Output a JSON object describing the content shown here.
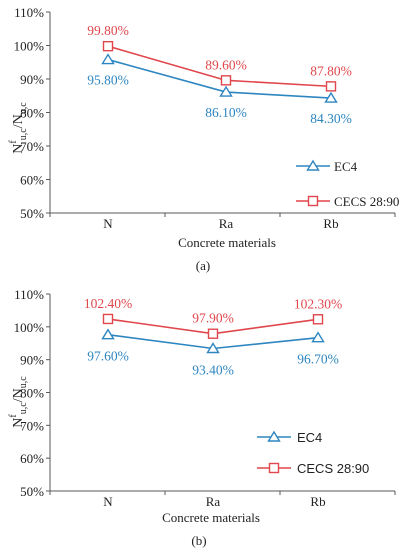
{
  "colors": {
    "ec4": "#2e86c1",
    "cecs": "#e0474c",
    "axis": "#595959",
    "text": "#222222"
  },
  "icons": {
    "ec4_marker": "triangle",
    "cecs_marker": "square"
  },
  "chart_data": [
    {
      "type": "line",
      "panel_label": "(a)",
      "categories": [
        "N",
        "Ra",
        "Rb"
      ],
      "series": [
        {
          "name": "EC4",
          "values": [
            95.8,
            86.1,
            84.3
          ],
          "labels": [
            "95.80%",
            "86.10%",
            "84.30%"
          ]
        },
        {
          "name": "CECS 28:90",
          "values": [
            99.8,
            89.6,
            87.8
          ],
          "labels": [
            "99.80%",
            "89.60%",
            "87.80%"
          ]
        }
      ],
      "xlabel": "Concrete materials",
      "ylabel_main": "N",
      "ylabel_sup": "f",
      "ylabel_sub": "u,c",
      "ylabel_tail": "/N",
      "ylabel_sub2": "u,c",
      "ylim": [
        50,
        110
      ],
      "yticks": [
        "50%",
        "60%",
        "70%",
        "80%",
        "90%",
        "100%",
        "110%"
      ],
      "grid": false,
      "legend": "lower-right"
    },
    {
      "type": "line",
      "panel_label": "(b)",
      "categories": [
        "N",
        "Ra",
        "Rb"
      ],
      "series": [
        {
          "name": "EC4",
          "values": [
            97.6,
            93.4,
            96.7
          ],
          "labels": [
            "97.60%",
            "93.40%",
            "96.70%"
          ]
        },
        {
          "name": "CECS 28:90",
          "values": [
            102.4,
            97.9,
            102.3
          ],
          "labels": [
            "102.40%",
            "97.90%",
            "102.30%"
          ]
        }
      ],
      "xlabel": "Concrete materials",
      "ylabel_main": "N",
      "ylabel_sup": "f",
      "ylabel_sub": "u,c",
      "ylabel_tail": "/N",
      "ylabel_sub2": "u,c",
      "ylim": [
        50,
        110
      ],
      "yticks": [
        "50%",
        "60%",
        "70%",
        "80%",
        "90%",
        "100%",
        "110%"
      ],
      "grid": false,
      "legend": "lower-right"
    }
  ]
}
